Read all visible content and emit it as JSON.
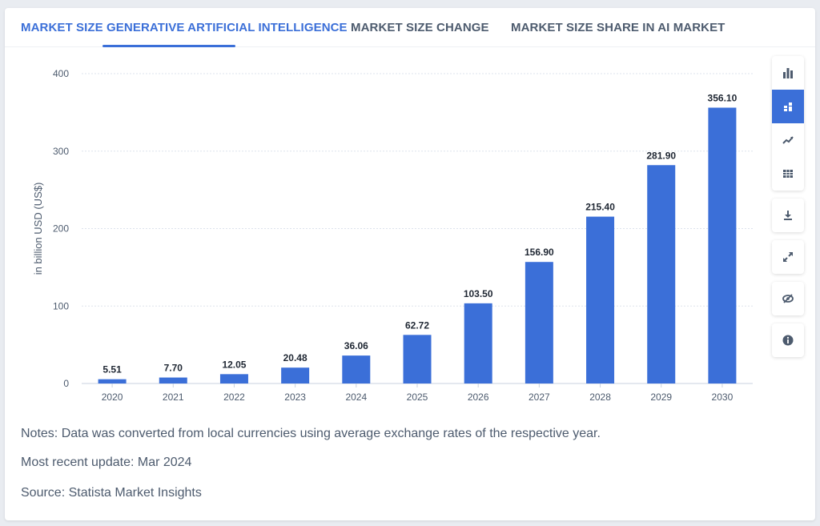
{
  "tabs": [
    {
      "label": "MARKET SIZE GENERATIVE ARTIFICIAL INTELLIGENCE",
      "active": true
    },
    {
      "label": "MARKET SIZE CHANGE",
      "active": false
    },
    {
      "label": "MARKET SIZE SHARE IN AI MARKET",
      "active": false
    }
  ],
  "toolbar": {
    "view_icons": [
      "bar-chart-icon",
      "stacked-bar-icon",
      "line-chart-icon",
      "table-view-icon"
    ],
    "active_view": "stacked-bar-icon",
    "actions": [
      "download-icon",
      "fullscreen-icon",
      "hide-icon",
      "info-icon"
    ]
  },
  "notes": {
    "note": "Notes: Data was converted from local currencies using average exchange rates of the respective year.",
    "update": "Most recent update: Mar 2024",
    "source": "Source: Statista Market Insights"
  },
  "colors": {
    "bar": "#3b6fd8",
    "accent": "#3b6fd8",
    "text": "#4d5b6e",
    "grid": "#dde3ec"
  },
  "chart_data": {
    "type": "bar",
    "categories": [
      "2020",
      "2021",
      "2022",
      "2023",
      "2024",
      "2025",
      "2026",
      "2027",
      "2028",
      "2029",
      "2030"
    ],
    "values": [
      5.51,
      7.7,
      12.05,
      20.48,
      36.06,
      62.72,
      103.5,
      156.9,
      215.4,
      281.9,
      356.1
    ],
    "value_labels": [
      "5.51",
      "7.70",
      "12.05",
      "20.48",
      "36.06",
      "62.72",
      "103.50",
      "156.90",
      "215.40",
      "281.90",
      "356.10"
    ],
    "ylabel": "in billion USD (US$)",
    "yticks": [
      0,
      100,
      200,
      300,
      400
    ],
    "ylim": [
      0,
      400
    ],
    "grid": true
  }
}
